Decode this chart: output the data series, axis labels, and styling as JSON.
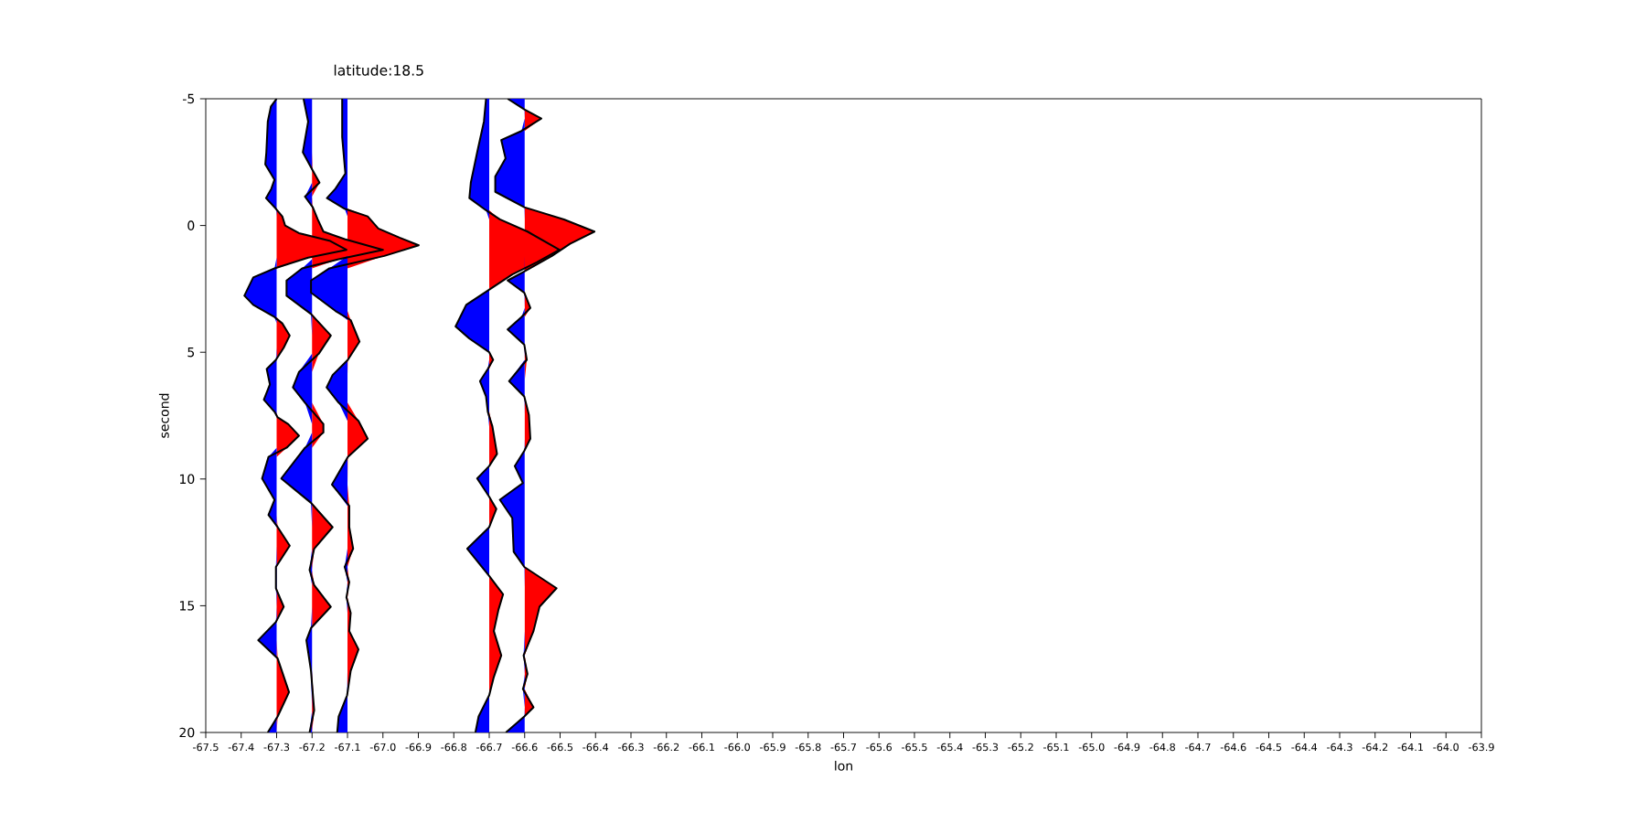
{
  "chart_data": {
    "type": "line",
    "title": "latitude:18.5",
    "xlabel": "lon",
    "ylabel": "second",
    "xlim": [
      -67.5,
      -63.9
    ],
    "ylim": [
      20,
      -5
    ],
    "xticks": [
      -67.5,
      -67.4,
      -67.3,
      -67.2,
      -67.1,
      {
        "value": -67.0,
        "label": "-67.0"
      },
      -66.9,
      -66.8,
      -66.7,
      -66.6,
      -66.5,
      -66.4,
      -66.3,
      -66.2,
      -66.1,
      {
        "value": -66.0,
        "label": "-66.0"
      },
      -65.9,
      -65.8,
      -65.7,
      -65.6,
      -65.5,
      -65.4,
      -65.3,
      -65.2,
      -65.1,
      {
        "value": -65.0,
        "label": "-65.0"
      },
      -64.9,
      -64.8,
      -64.7,
      -64.6,
      -64.5,
      -64.4,
      -64.3,
      -64.2,
      -64.1,
      {
        "value": -64.0,
        "label": "-64.0"
      },
      -63.9
    ],
    "yticks": [
      -5,
      0,
      5,
      10,
      15,
      20
    ],
    "series": [
      {
        "type": "area",
        "color": "#ff0000",
        "x": [
          -67.3,
          -67.3,
          -67.284,
          -67.276,
          -67.237,
          -67.151,
          -67.103,
          -67.211,
          -67.3,
          -67.3,
          -67.284,
          -67.263,
          -67.28,
          -67.3,
          -67.3,
          -67.297,
          -67.267,
          -67.237,
          -67.272,
          -67.3,
          -67.3,
          -67.297,
          -67.263,
          -67.3,
          -67.3,
          -67.28,
          -67.3,
          -67.3,
          -67.297,
          -67.265,
          -67.297,
          -67.3
        ],
        "values": [
          -5,
          -0.66,
          -0.36,
          0,
          0.3,
          0.6,
          0.96,
          1.27,
          1.69,
          3.61,
          3.86,
          4.34,
          4.82,
          5.3,
          7.35,
          7.57,
          7.84,
          8.29,
          8.77,
          9.13,
          11.42,
          11.9,
          12.63,
          13.47,
          14.31,
          15.04,
          15.64,
          16.36,
          17.08,
          18.41,
          19.37,
          20
        ]
      },
      {
        "type": "area",
        "color": "#0000ff",
        "x": [
          -67.3,
          -67.316,
          -67.325,
          -67.329,
          -67.332,
          -67.306,
          -67.315,
          -67.33,
          -67.302,
          -67.3,
          -67.3,
          -67.306,
          -67.366,
          -67.391,
          -67.366,
          -67.306,
          -67.3,
          -67.3,
          -67.302,
          -67.328,
          -67.319,
          -67.336,
          -67.306,
          -67.3,
          -67.3,
          -67.323,
          -67.341,
          -67.306,
          -67.323,
          -67.3,
          -67.3,
          -67.302,
          -67.302,
          -67.3,
          -67.302,
          -67.352,
          -67.3,
          -67.3,
          -67.325,
          -67.3
        ],
        "values": [
          -5,
          -4.7,
          -4.1,
          -2.89,
          -2.41,
          -1.81,
          -1.45,
          -1.08,
          -0.66,
          -0.36,
          1.27,
          1.69,
          2.05,
          2.77,
          3.13,
          3.61,
          3.86,
          4.82,
          5.3,
          5.66,
          6.27,
          6.87,
          7.35,
          7.57,
          8.77,
          9.13,
          9.98,
          10.82,
          11.42,
          11.9,
          12.63,
          13.47,
          14.31,
          15.04,
          15.64,
          16.36,
          17.08,
          19.37,
          20,
          20
        ]
      },
      {
        "color": "#000000",
        "x": [
          -67.3,
          -67.316,
          -67.325,
          -67.329,
          -67.332,
          -67.306,
          -67.315,
          -67.33,
          -67.302,
          -67.284,
          -67.276,
          -67.237,
          -67.151,
          -67.103,
          -67.211,
          -67.306,
          -67.366,
          -67.391,
          -67.366,
          -67.306,
          -67.284,
          -67.263,
          -67.28,
          -67.302,
          -67.328,
          -67.319,
          -67.336,
          -67.306,
          -67.297,
          -67.267,
          -67.237,
          -67.272,
          -67.323,
          -67.341,
          -67.306,
          -67.323,
          -67.297,
          -67.263,
          -67.302,
          -67.302,
          -67.28,
          -67.302,
          -67.352,
          -67.297,
          -67.265,
          -67.297,
          -67.325
        ],
        "values": [
          -5,
          -4.7,
          -4.1,
          -2.89,
          -2.41,
          -1.81,
          -1.45,
          -1.08,
          -0.66,
          -0.36,
          0,
          0.3,
          0.6,
          0.96,
          1.27,
          1.69,
          2.05,
          2.77,
          3.13,
          3.61,
          3.86,
          4.34,
          4.82,
          5.3,
          5.66,
          6.27,
          6.87,
          7.35,
          7.57,
          7.84,
          8.29,
          8.77,
          9.13,
          9.98,
          10.82,
          11.42,
          11.9,
          12.63,
          13.47,
          14.31,
          15.04,
          15.64,
          16.36,
          17.08,
          18.41,
          19.37,
          20
        ]
      },
      {
        "type": "area",
        "color": "#ff0000",
        "x": [
          -67.2,
          -67.2,
          -67.198,
          -67.179,
          -67.2,
          -67.198,
          -67.184,
          -67.168,
          -67.108,
          -67.0,
          -67.125,
          -67.2,
          -67.2,
          -67.147,
          -67.181,
          -67.2,
          -67.2,
          -67.168,
          -67.168,
          -67.2,
          -67.2,
          -67.142,
          -67.194,
          -67.2,
          -67.194,
          -67.147,
          -67.2,
          -67.2,
          -67.194,
          -67.2
        ],
        "values": [
          -5,
          -2.89,
          -2.17,
          -1.69,
          -1.14,
          -0.72,
          -0.24,
          0.24,
          0.54,
          0.96,
          1.33,
          1.69,
          3.49,
          4.34,
          5.06,
          5.78,
          6.99,
          7.83,
          8.17,
          8.77,
          10.94,
          11.9,
          12.75,
          13.59,
          14.19,
          15.04,
          15.88,
          17.57,
          19.13,
          20
        ]
      },
      {
        "type": "area",
        "color": "#0000ff",
        "x": [
          -67.2,
          -67.224,
          -67.211,
          -67.226,
          -67.2,
          -67.2,
          -67.22,
          -67.2,
          -67.2,
          -67.228,
          -67.272,
          -67.272,
          -67.203,
          -67.2,
          -67.2,
          -67.237,
          -67.254,
          -67.22,
          -67.2,
          -67.2,
          -67.22,
          -67.287,
          -67.203,
          -67.2,
          -67.2,
          -67.207,
          -67.2,
          -67.2,
          -67.203,
          -67.216,
          -67.203,
          -67.2,
          -67.207,
          -67.2
        ],
        "values": [
          -5,
          -5,
          -4.1,
          -2.89,
          -2.17,
          -1.69,
          -1.14,
          -0.72,
          1.33,
          1.69,
          2.17,
          2.77,
          3.49,
          4.34,
          5.06,
          5.78,
          6.39,
          6.99,
          7.83,
          8.17,
          8.77,
          9.98,
          10.94,
          11.9,
          12.75,
          13.59,
          14.19,
          15.04,
          15.88,
          16.36,
          17.57,
          19.13,
          20,
          20
        ]
      },
      {
        "color": "#000000",
        "x": [
          -67.224,
          -67.211,
          -67.226,
          -67.198,
          -67.179,
          -67.22,
          -67.198,
          -67.184,
          -67.168,
          -67.108,
          -67.0,
          -67.125,
          -67.228,
          -67.272,
          -67.272,
          -67.203,
          -67.147,
          -67.181,
          -67.237,
          -67.254,
          -67.22,
          -67.168,
          -67.168,
          -67.22,
          -67.287,
          -67.203,
          -67.142,
          -67.194,
          -67.207,
          -67.194,
          -67.147,
          -67.203,
          -67.216,
          -67.203,
          -67.194,
          -67.207
        ],
        "values": [
          -5,
          -4.1,
          -2.89,
          -2.17,
          -1.69,
          -1.14,
          -0.72,
          -0.24,
          0.24,
          0.54,
          0.96,
          1.33,
          1.69,
          2.17,
          2.77,
          3.49,
          4.34,
          5.06,
          5.78,
          6.39,
          6.99,
          7.83,
          8.17,
          8.77,
          9.98,
          10.94,
          11.9,
          12.75,
          13.59,
          14.19,
          15.04,
          15.88,
          16.36,
          17.57,
          19.13,
          20
        ]
      },
      {
        "type": "area",
        "color": "#ff0000",
        "x": [
          -67.1,
          -67.1,
          -67.043,
          -67.013,
          -66.953,
          -66.899,
          -66.996,
          -67.1,
          -67.1,
          -67.091,
          -67.066,
          -67.099,
          -67.1,
          -67.1,
          -67.069,
          -67.043,
          -67.099,
          -67.1,
          -67.095,
          -67.095,
          -67.084,
          -67.1,
          -67.095,
          -67.1,
          -67.091,
          -67.095,
          -67.069,
          -67.091,
          -67.1,
          -67.1
        ],
        "values": [
          -5,
          -0.66,
          -0.36,
          0.12,
          0.48,
          0.78,
          1.2,
          1.69,
          3.37,
          3.73,
          4.58,
          5.3,
          5.9,
          6.99,
          7.71,
          8.41,
          9.13,
          10.22,
          11.06,
          11.9,
          12.75,
          13.47,
          14.07,
          14.67,
          15.28,
          16.0,
          16.72,
          17.57,
          18.53,
          20
        ]
      },
      {
        "type": "area",
        "color": "#0000ff",
        "x": [
          -67.1,
          -67.115,
          -67.115,
          -67.106,
          -67.134,
          -67.158,
          -67.108,
          -67.1,
          -67.1,
          -67.151,
          -67.203,
          -67.203,
          -67.134,
          -67.1,
          -67.1,
          -67.142,
          -67.159,
          -67.125,
          -67.1,
          -67.1,
          -67.144,
          -67.1,
          -67.1,
          -67.108,
          -67.1,
          -67.103,
          -67.1,
          -67.1,
          -67.101,
          -67.125,
          -67.129,
          -67.1
        ],
        "values": [
          -5,
          -5,
          -3.49,
          -2.05,
          -1.45,
          -1.08,
          -0.66,
          -0.36,
          1.2,
          1.69,
          2.17,
          2.65,
          3.37,
          3.73,
          5.3,
          5.9,
          6.39,
          6.99,
          7.71,
          9.13,
          10.22,
          11.06,
          12.75,
          13.47,
          14.07,
          14.67,
          15.28,
          17.57,
          18.53,
          19.37,
          20,
          20
        ]
      },
      {
        "color": "#000000",
        "x": [
          -67.115,
          -67.115,
          -67.106,
          -67.134,
          -67.158,
          -67.108,
          -67.043,
          -67.013,
          -66.953,
          -66.899,
          -66.996,
          -67.151,
          -67.203,
          -67.203,
          -67.134,
          -67.091,
          -67.066,
          -67.099,
          -67.142,
          -67.159,
          -67.125,
          -67.069,
          -67.043,
          -67.099,
          -67.144,
          -67.095,
          -67.095,
          -67.084,
          -67.108,
          -67.095,
          -67.103,
          -67.091,
          -67.095,
          -67.069,
          -67.091,
          -67.101,
          -67.125,
          -67.129
        ],
        "values": [
          -5,
          -3.49,
          -2.05,
          -1.45,
          -1.08,
          -0.66,
          -0.36,
          0.12,
          0.48,
          0.78,
          1.2,
          1.69,
          2.17,
          2.65,
          3.37,
          3.73,
          4.58,
          5.3,
          5.9,
          6.39,
          6.99,
          7.71,
          8.41,
          9.13,
          10.22,
          11.06,
          11.9,
          12.75,
          13.47,
          14.07,
          14.67,
          15.28,
          16.0,
          16.72,
          17.57,
          18.53,
          19.37,
          20
        ]
      },
      {
        "type": "area",
        "color": "#ff0000",
        "x": [
          -66.7,
          -66.7,
          -66.67,
          -66.592,
          -66.502,
          -66.566,
          -66.635,
          -66.7,
          -66.7,
          -66.689,
          -66.7,
          -66.7,
          -66.691,
          -66.678,
          -66.7,
          -66.7,
          -66.68,
          -66.7,
          -66.7,
          -66.661,
          -66.674,
          -66.687,
          -66.666,
          -66.687,
          -66.7,
          -66.7
        ],
        "values": [
          -5,
          -0.6,
          -0.24,
          0.24,
          0.96,
          1.45,
          1.93,
          2.53,
          5.0,
          5.3,
          5.66,
          7.35,
          7.93,
          9.01,
          9.49,
          10.7,
          11.18,
          11.9,
          13.83,
          14.55,
          15.16,
          16.0,
          16.96,
          17.81,
          18.53,
          20
        ]
      },
      {
        "type": "area",
        "color": "#0000ff",
        "x": [
          -66.7,
          -66.709,
          -66.715,
          -66.734,
          -66.752,
          -66.756,
          -66.709,
          -66.7,
          -66.7,
          -66.765,
          -66.795,
          -66.756,
          -66.7,
          -66.7,
          -66.704,
          -66.726,
          -66.709,
          -66.704,
          -66.7,
          -66.7,
          -66.734,
          -66.7,
          -66.7,
          -66.762,
          -66.7,
          -66.7,
          -66.73,
          -66.739,
          -66.7
        ],
        "values": [
          -5,
          -5,
          -4.1,
          -2.89,
          -1.69,
          -1.08,
          -0.6,
          -0.24,
          2.53,
          3.13,
          3.98,
          4.46,
          5.0,
          5.3,
          5.66,
          6.14,
          6.75,
          7.35,
          7.93,
          9.49,
          9.98,
          10.7,
          11.9,
          12.75,
          13.83,
          18.53,
          19.37,
          20,
          20
        ]
      },
      {
        "color": "#000000",
        "x": [
          -66.709,
          -66.715,
          -66.734,
          -66.752,
          -66.756,
          -66.709,
          -66.67,
          -66.592,
          -66.502,
          -66.566,
          -66.635,
          -66.765,
          -66.795,
          -66.756,
          -66.7,
          -66.689,
          -66.704,
          -66.726,
          -66.709,
          -66.704,
          -66.691,
          -66.678,
          -66.7,
          -66.734,
          -66.7,
          -66.68,
          -66.7,
          -66.762,
          -66.7,
          -66.661,
          -66.674,
          -66.687,
          -66.666,
          -66.687,
          -66.7,
          -66.73,
          -66.739
        ],
        "values": [
          -5,
          -4.1,
          -2.89,
          -1.69,
          -1.08,
          -0.6,
          -0.24,
          0.24,
          0.96,
          1.45,
          1.93,
          3.13,
          3.98,
          4.46,
          5.0,
          5.3,
          5.66,
          6.14,
          6.75,
          7.35,
          7.93,
          9.01,
          9.49,
          9.98,
          10.7,
          11.18,
          11.9,
          12.75,
          13.83,
          14.55,
          15.16,
          16.0,
          16.96,
          17.81,
          18.53,
          19.37,
          20
        ]
      },
      {
        "type": "area",
        "color": "#ff0000",
        "x": [
          -66.6,
          -66.6,
          -66.553,
          -66.6,
          -66.6,
          -66.489,
          -66.403,
          -66.472,
          -66.523,
          -66.6,
          -66.6,
          -66.584,
          -66.6,
          -66.6,
          -66.594,
          -66.6,
          -66.6,
          -66.588,
          -66.584,
          -66.6,
          -66.6,
          -66.51,
          -66.558,
          -66.575,
          -66.6,
          -66.592,
          -66.6,
          -66.575,
          -66.6,
          -66.6
        ],
        "values": [
          -5,
          -4.58,
          -4.22,
          -3.73,
          -0.72,
          -0.24,
          0.24,
          0.72,
          1.2,
          1.81,
          2.65,
          3.25,
          3.61,
          4.7,
          5.3,
          6.14,
          6.75,
          7.47,
          8.41,
          8.89,
          13.47,
          14.31,
          15.04,
          16.0,
          16.96,
          17.69,
          18.29,
          19.01,
          19.37,
          20
        ]
      },
      {
        "type": "area",
        "color": "#0000ff",
        "x": [
          -66.6,
          -66.648,
          -66.601,
          -66.6,
          -66.609,
          -66.666,
          -66.654,
          -66.683,
          -66.683,
          -66.601,
          -66.6,
          -66.6,
          -66.601,
          -66.648,
          -66.601,
          -66.6,
          -66.609,
          -66.648,
          -66.601,
          -66.6,
          -66.644,
          -66.601,
          -66.6,
          -66.6,
          -66.601,
          -66.628,
          -66.605,
          -66.67,
          -66.635,
          -66.631,
          -66.601,
          -66.6,
          -66.6,
          -66.603,
          -66.6,
          -66.605,
          -66.6,
          -66.601,
          -66.653,
          -66.6
        ],
        "values": [
          -5,
          -5,
          -4.58,
          -4.22,
          -3.73,
          -3.37,
          -2.65,
          -1.93,
          -1.33,
          -0.72,
          -0.24,
          1.2,
          1.81,
          2.17,
          2.65,
          3.25,
          3.61,
          4.1,
          4.7,
          5.3,
          6.14,
          6.75,
          7.47,
          8.41,
          8.89,
          9.49,
          10.16,
          10.82,
          11.54,
          12.87,
          13.47,
          14.31,
          16.0,
          16.96,
          17.69,
          18.29,
          19.01,
          19.37,
          20,
          20
        ]
      },
      {
        "color": "#000000",
        "x": [
          -66.648,
          -66.601,
          -66.553,
          -66.609,
          -66.666,
          -66.654,
          -66.683,
          -66.683,
          -66.601,
          -66.489,
          -66.403,
          -66.472,
          -66.523,
          -66.601,
          -66.648,
          -66.601,
          -66.584,
          -66.609,
          -66.648,
          -66.601,
          -66.594,
          -66.644,
          -66.601,
          -66.588,
          -66.584,
          -66.601,
          -66.628,
          -66.605,
          -66.67,
          -66.635,
          -66.631,
          -66.601,
          -66.51,
          -66.558,
          -66.575,
          -66.603,
          -66.592,
          -66.605,
          -66.575,
          -66.601,
          -66.653
        ],
        "values": [
          -5,
          -4.58,
          -4.22,
          -3.73,
          -3.37,
          -2.65,
          -1.93,
          -1.33,
          -0.72,
          -0.24,
          0.24,
          0.72,
          1.2,
          1.81,
          2.17,
          2.65,
          3.25,
          3.61,
          4.1,
          4.7,
          5.3,
          6.14,
          6.75,
          7.47,
          8.41,
          8.89,
          9.49,
          10.16,
          10.82,
          11.54,
          12.87,
          13.47,
          14.31,
          15.04,
          16.0,
          16.96,
          17.69,
          18.29,
          19.01,
          19.37,
          20
        ]
      }
    ]
  }
}
